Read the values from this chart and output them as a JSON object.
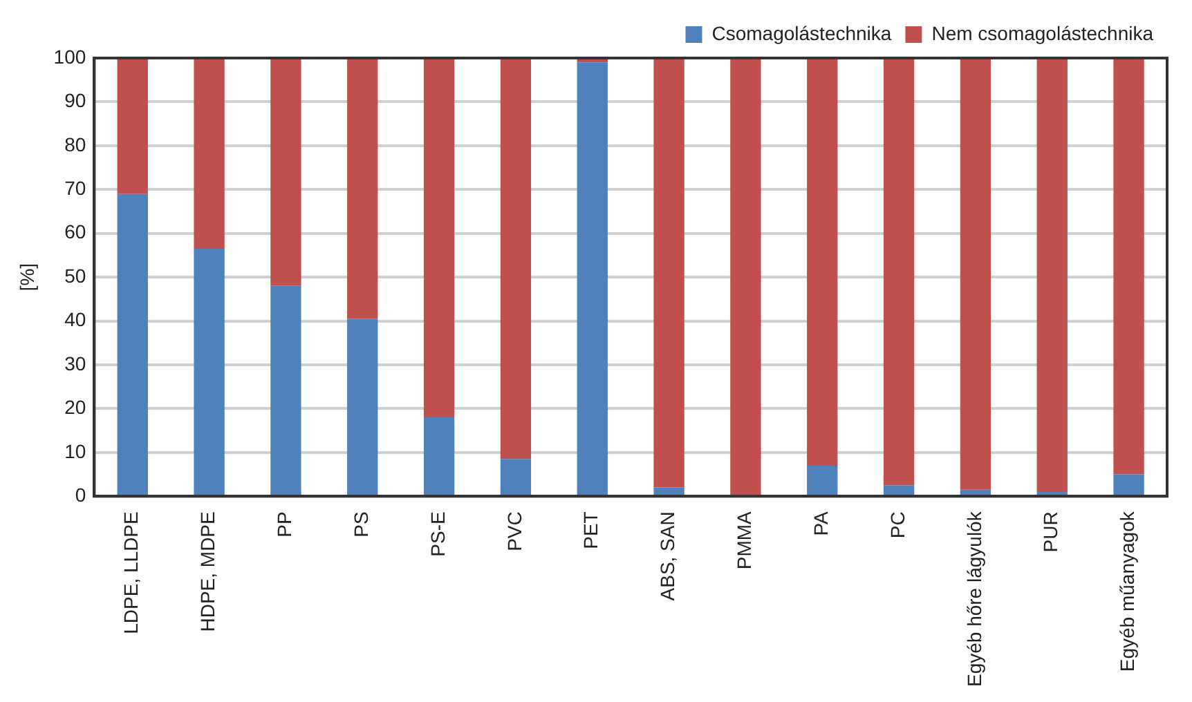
{
  "chart_data": {
    "type": "bar",
    "stacked": true,
    "ylabel": "[%]",
    "categories": [
      "LDPE, LLDPE",
      "HDPE, MDPE",
      "PP",
      "PS",
      "PS-E",
      "PVC",
      "PET",
      "ABS, SAN",
      "PMMA",
      "PA",
      "PC",
      "Egyéb hőre lágyulók",
      "PUR",
      "Egyéb műanyagok"
    ],
    "series": [
      {
        "name": "Csomagolástechnika",
        "color": "#4f81bd",
        "values": [
          69,
          56.5,
          48,
          40.5,
          18,
          8.5,
          99,
          2,
          0,
          7,
          2.5,
          1.5,
          1,
          5
        ]
      },
      {
        "name": "Nem csomagolástechnika",
        "color": "#c0504d",
        "values": [
          31,
          43.5,
          52,
          59.5,
          82,
          91.5,
          1,
          98,
          100,
          93,
          97.5,
          98.5,
          99,
          95
        ]
      }
    ],
    "ylim": [
      0,
      100
    ],
    "yticks": [
      0,
      10,
      20,
      30,
      40,
      50,
      60,
      70,
      80,
      90,
      100
    ],
    "grid": "y",
    "legend": "top right"
  }
}
